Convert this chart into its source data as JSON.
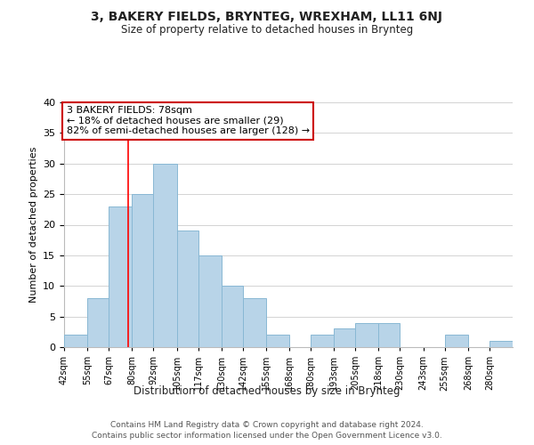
{
  "title": "3, BAKERY FIELDS, BRYNTEG, WREXHAM, LL11 6NJ",
  "subtitle": "Size of property relative to detached houses in Brynteg",
  "xlabel": "Distribution of detached houses by size in Brynteg",
  "ylabel": "Number of detached properties",
  "footer_lines": [
    "Contains HM Land Registry data © Crown copyright and database right 2024.",
    "Contains public sector information licensed under the Open Government Licence v3.0."
  ],
  "bin_edges": [
    42,
    55,
    67,
    80,
    92,
    105,
    117,
    130,
    142,
    155,
    168,
    180,
    193,
    205,
    218,
    230,
    243,
    255,
    268,
    280,
    293
  ],
  "bin_counts": [
    2,
    8,
    23,
    25,
    30,
    19,
    15,
    10,
    8,
    2,
    0,
    2,
    3,
    4,
    4,
    0,
    0,
    2,
    0,
    1
  ],
  "bar_color": "#b8d4e8",
  "bar_edge_color": "#89b8d4",
  "red_line_x": 78,
  "annotation_title": "3 BAKERY FIELDS: 78sqm",
  "annotation_line1": "← 18% of detached houses are smaller (29)",
  "annotation_line2": "82% of semi-detached houses are larger (128) →",
  "ylim": [
    0,
    40
  ],
  "yticks": [
    0,
    5,
    10,
    15,
    20,
    25,
    30,
    35,
    40
  ],
  "background_color": "#ffffff",
  "grid_color": "#cccccc"
}
